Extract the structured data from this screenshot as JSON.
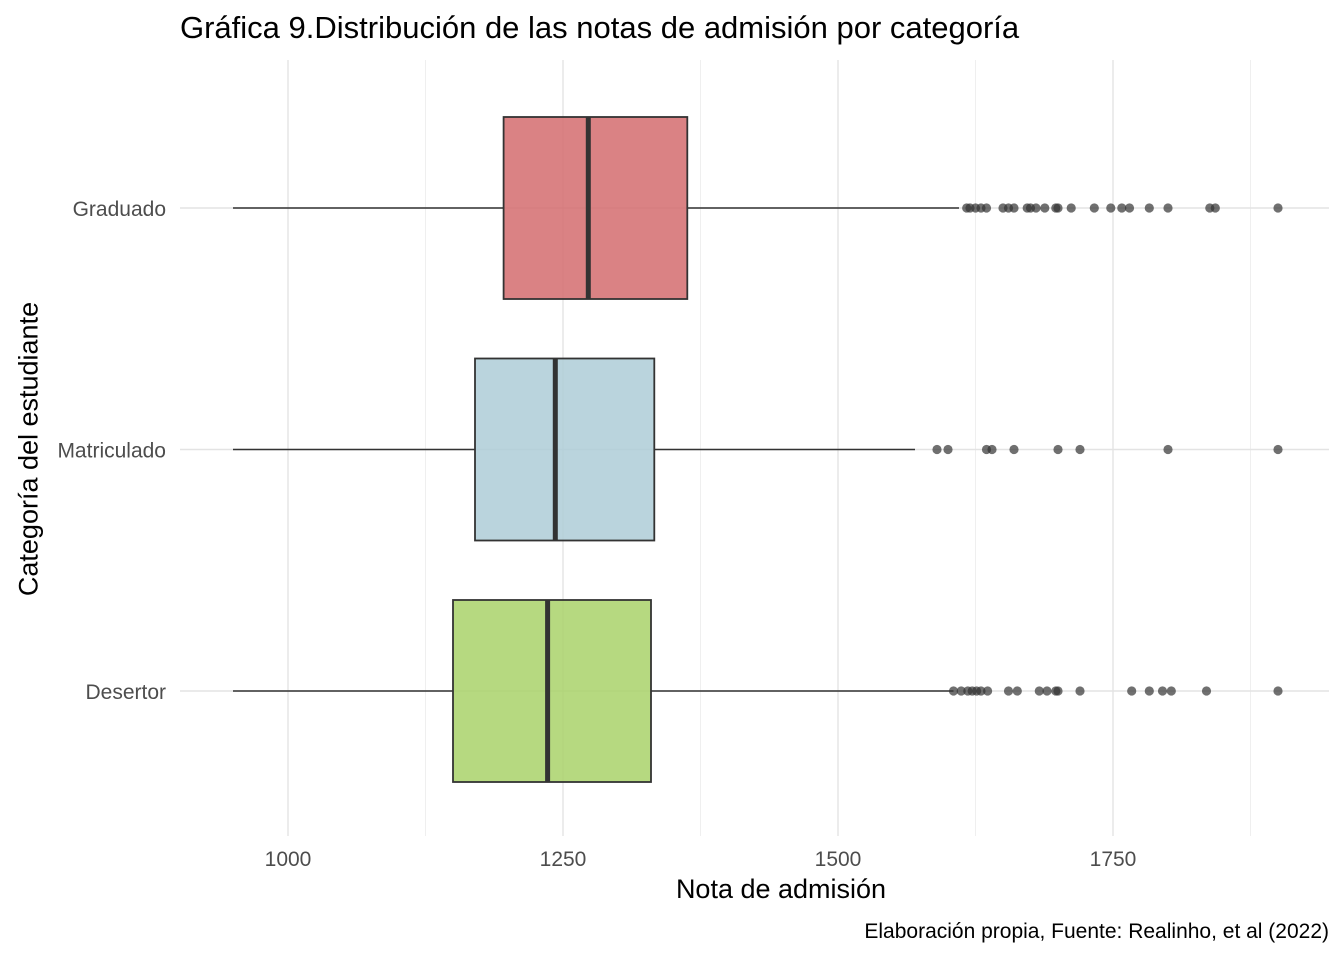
{
  "chart_data": {
    "type": "boxplot",
    "orientation": "horizontal",
    "title": "Gráfica 9.Distribución de las notas de admisión por categoría",
    "xlabel": "Nota de admisión",
    "ylabel": "Categoría del estudiante",
    "caption": "Elaboración propia, Fuente: Realinho, et al (2022)",
    "xlim": [
      900,
      1950
    ],
    "x_ticks": [
      1000,
      1250,
      1500,
      1750
    ],
    "x_tick_labels": [
      "1000",
      "1250",
      "1500",
      "1750"
    ],
    "grid": true,
    "categories": [
      "Graduado",
      "Matriculado",
      "Desertor"
    ],
    "series": [
      {
        "name": "Graduado",
        "color": "#d36c6e",
        "min": 950,
        "q1": 1196,
        "median": 1273,
        "q3": 1363,
        "max": 1610,
        "outliers": [
          1617,
          1620,
          1625,
          1630,
          1635,
          1650,
          1655,
          1660,
          1672,
          1675,
          1680,
          1688,
          1698,
          1700,
          1712,
          1733,
          1748,
          1758,
          1765,
          1783,
          1800,
          1838,
          1843,
          1900
        ]
      },
      {
        "name": "Matriculado",
        "color": "#aecdd7",
        "min": 950,
        "q1": 1170,
        "median": 1243,
        "q3": 1333,
        "max": 1570,
        "outliers": [
          1590,
          1600,
          1635,
          1640,
          1660,
          1700,
          1720,
          1800,
          1900
        ]
      },
      {
        "name": "Desertor",
        "color": "#a9d26a",
        "min": 950,
        "q1": 1150,
        "median": 1236,
        "q3": 1330,
        "max": 1605,
        "outliers": [
          1605,
          1612,
          1618,
          1622,
          1626,
          1630,
          1636,
          1655,
          1663,
          1683,
          1690,
          1698,
          1700,
          1720,
          1767,
          1783,
          1795,
          1803,
          1835,
          1900
        ]
      }
    ]
  }
}
